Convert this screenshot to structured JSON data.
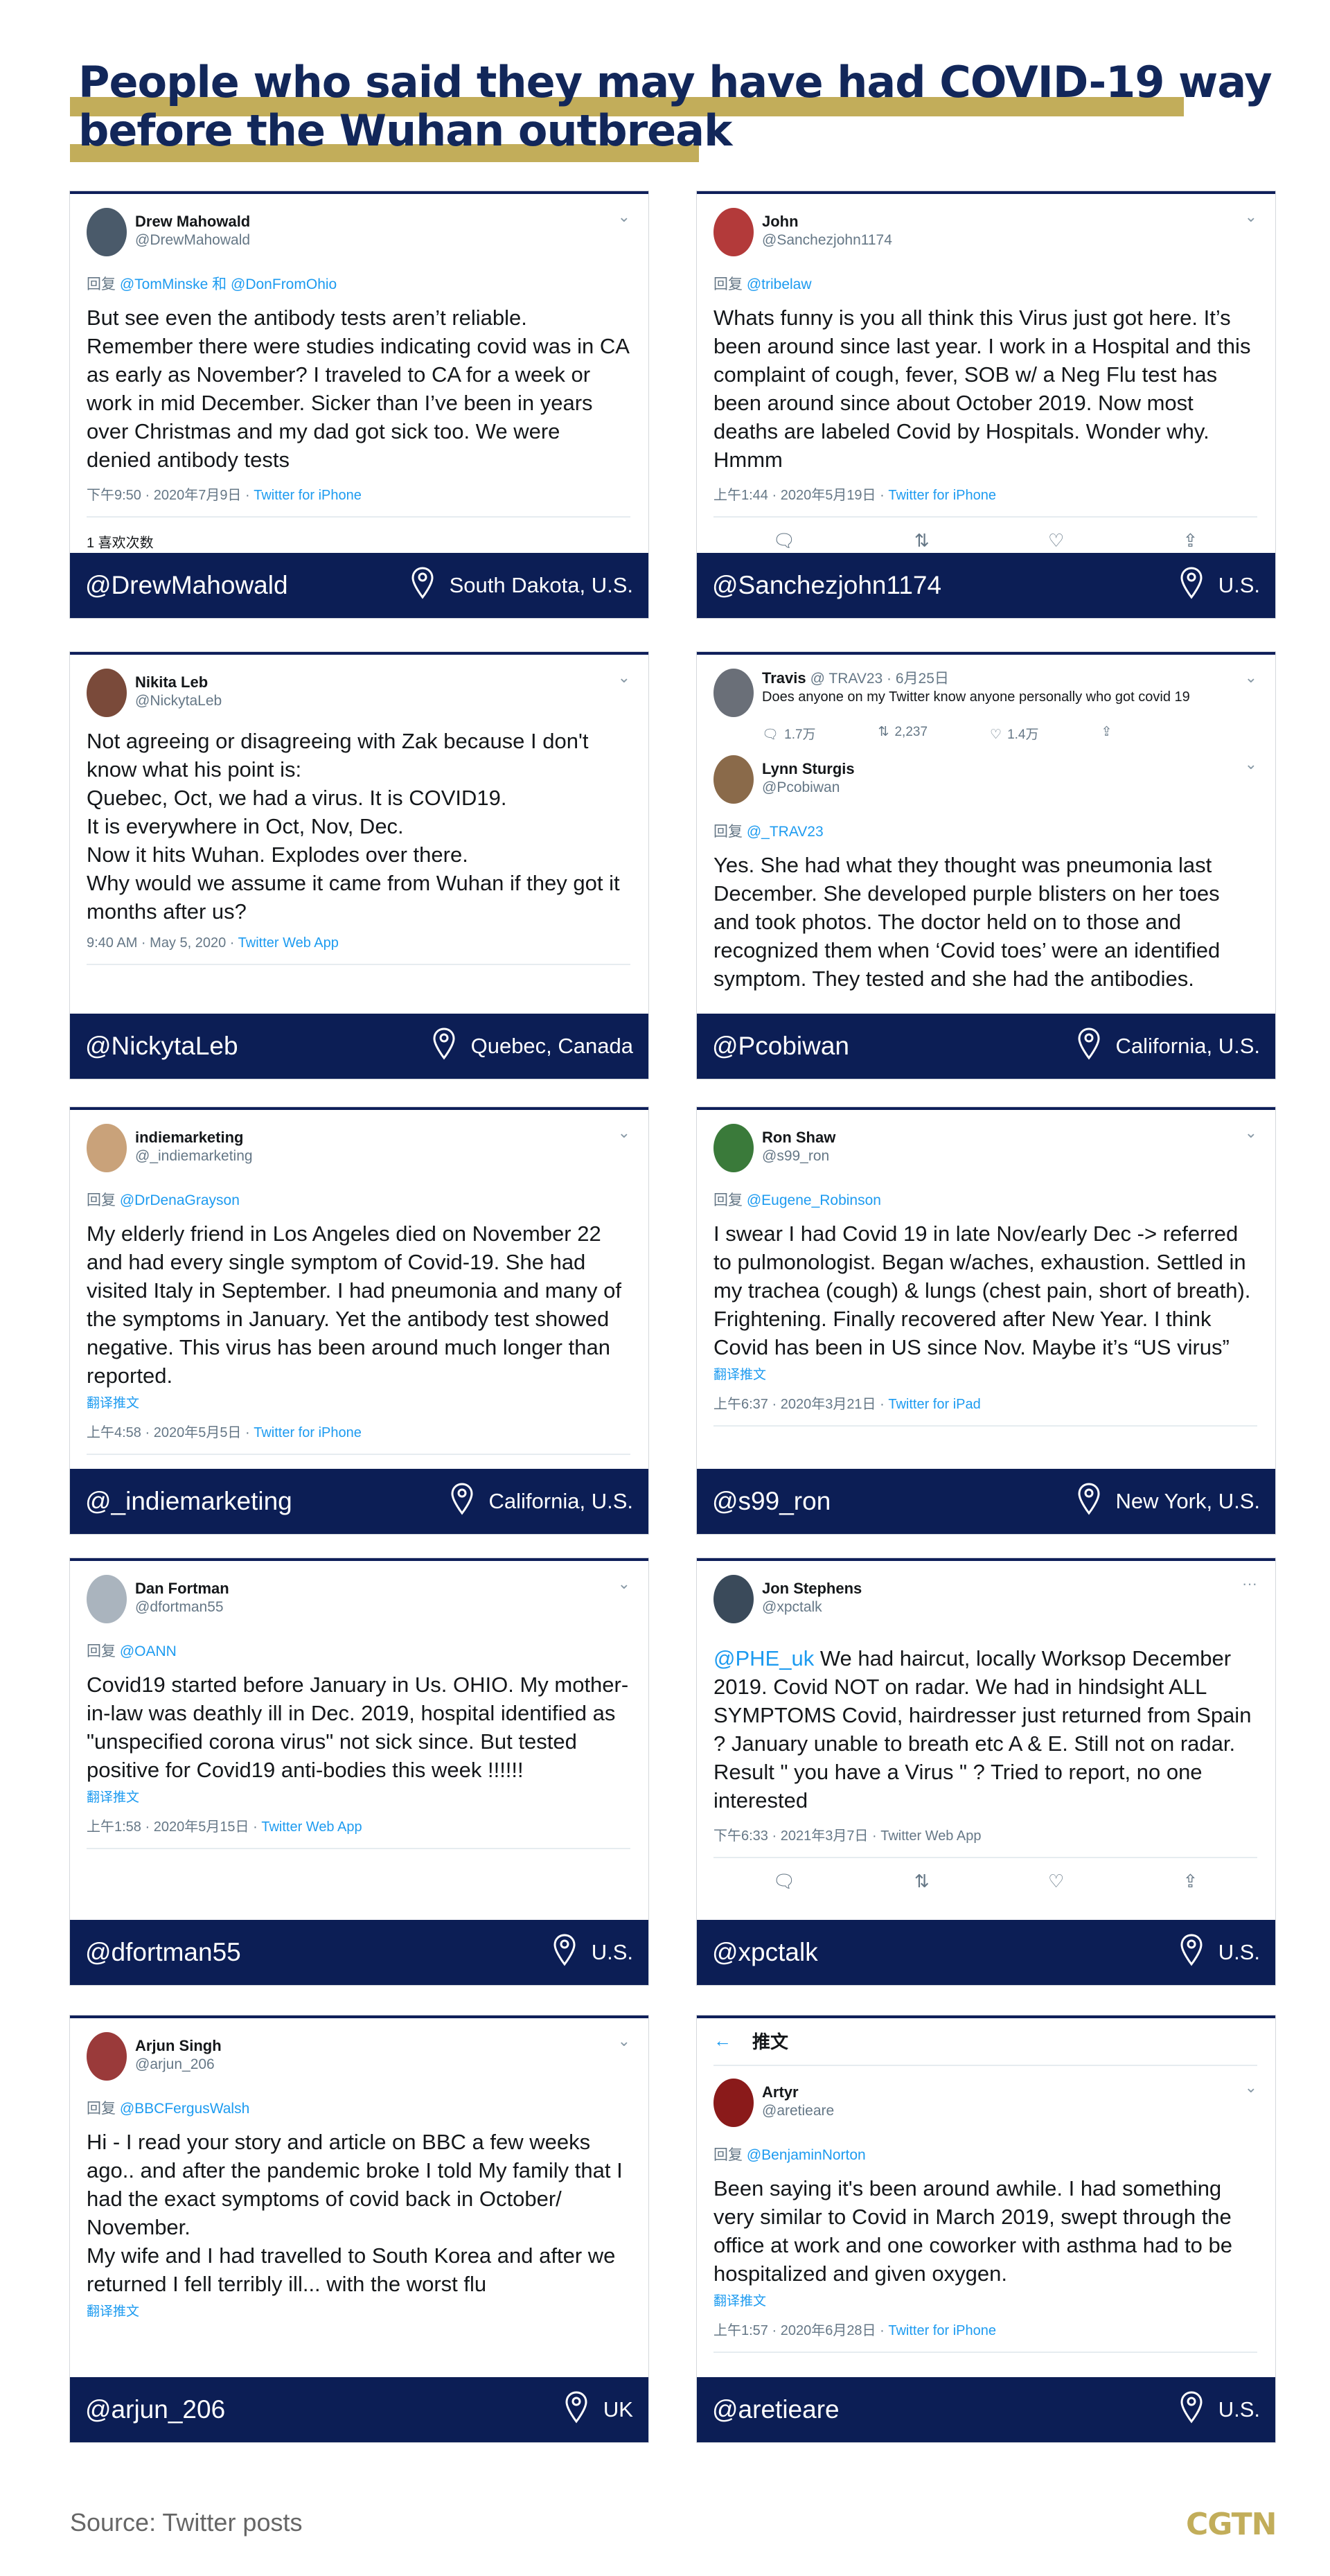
{
  "title": "People who said they may have had COVID-19 way\nbefore the Wuhan outbreak",
  "colors": {
    "title": "#12275a",
    "accent_bar": "#c2ad5a",
    "footer": "#0c1e55",
    "link": "#1d9bf0"
  },
  "cards": [
    {
      "name": "Drew Mahowald",
      "handle": "@DrewMahowald",
      "avatar_color": "#4a5a6a",
      "menu": "chevron",
      "reply_prefix": "回复",
      "reply_to": "@TomMinske 和 @DonFromOhio",
      "text": "But see even the antibody tests aren’t reliable. Remember there were studies indicating covid was in CA as early as November? I traveled to CA for a week or work in mid December. Sicker than I’ve been in years over Christmas and my dad got sick too. We were denied antibody tests",
      "time": "下午9:50 · 2020年7月9日 · ",
      "source": "Twitter for iPhone",
      "likes": "1 喜欢次数",
      "footer_handle": "@DrewMahowald",
      "location": "South Dakota, U.S."
    },
    {
      "name": "John",
      "handle": "@Sanchezjohn1174",
      "avatar_color": "#b33a3a",
      "menu": "chevron",
      "reply_prefix": "回复",
      "reply_to": "@tribelaw",
      "text": "Whats funny is you all think this Virus just got here. It’s been around since last year. I work in a Hospital and this complaint of cough, fever, SOB w/ a Neg Flu test has been around since about October 2019. Now most deaths are labeled Covid by Hospitals. Wonder why. Hmmm",
      "time": "上午1:44 · 2020年5月19日 · ",
      "source": "Twitter for iPhone",
      "actions": true,
      "footer_handle": "@Sanchezjohn1174",
      "location": "U.S."
    },
    {
      "name": "Nikita Leb",
      "handle": "@NickytaLeb",
      "avatar_color": "#7a4a3a",
      "menu": "chevron",
      "text": "Not agreeing or disagreeing with Zak because I don't know what his point is:\nQuebec, Oct, we had a virus.  It is COVID19.\nIt is everywhere in Oct, Nov, Dec.\nNow it hits Wuhan.  Explodes over there.\nWhy would we assume it came from Wuhan if they got it months after us?",
      "time": "9:40 AM · May 5, 2020 · ",
      "source": "Twitter Web App",
      "footer_handle": "@NickytaLeb",
      "location": "Quebec, Canada"
    },
    {
      "parent": {
        "name": "Travis",
        "meta": "@ TRAV23 · 6月25日",
        "text": "Does anyone on my Twitter know anyone personally who got covid 19",
        "replies": "1.7万",
        "retweets": "2,237",
        "likes": "1.4万",
        "avatar_color": "#6a6f78"
      },
      "name": "Lynn Sturgis",
      "handle": "@Pcobiwan",
      "avatar_color": "#8a6a4a",
      "menu": "chevron",
      "reply_prefix": "回复",
      "reply_to": "@_TRAV23",
      "text": "Yes.  She had what they thought was pneumonia last December.  She developed purple blisters on her toes and took photos.  The doctor held on to those and recognized them when ‘Covid toes’ were an identified symptom.  They tested and she had the antibodies.",
      "footer_handle": "@Pcobiwan",
      "location": "California, U.S."
    },
    {
      "name": "indiemarketing",
      "handle": "@_indiemarketing",
      "avatar_color": "#c9a27a",
      "menu": "chevron",
      "reply_prefix": "回复",
      "reply_to": "@DrDenaGrayson",
      "text": "My elderly friend in Los Angeles died on November 22 and had every single symptom of Covid-19. She had visited Italy in September.  I had pneumonia and many of the symptoms in January. Yet the antibody test showed negative. This virus has been around much longer than reported.",
      "translate": "翻译推文",
      "time": "上午4:58 · 2020年5月5日 · ",
      "source": "Twitter for iPhone",
      "footer_handle": "@_indiemarketing",
      "location": "California, U.S."
    },
    {
      "name": "Ron Shaw",
      "handle": "@s99_ron",
      "avatar_color": "#3a7a3a",
      "menu": "chevron",
      "reply_prefix": "回复",
      "reply_to": "@Eugene_Robinson",
      "text": "I swear I had Covid 19 in late Nov/early Dec -> referred to pulmonologist. Began w/aches, exhaustion. Settled in my trachea (cough) & lungs (chest pain, short of breath). Frightening. Finally recovered after New Year. I think Covid has been in US since Nov. Maybe  it’s “US virus”",
      "translate": "翻译推文",
      "time": "上午6:37 · 2020年3月21日 · ",
      "source": "Twitter for iPad",
      "footer_handle": "@s99_ron",
      "location": "New York, U.S."
    },
    {
      "name": "Dan Fortman",
      "handle": "@dfortman55",
      "avatar_color": "#aab4be",
      "menu": "chevron",
      "reply_prefix": "回复",
      "reply_to": "@OANN",
      "text": "Covid19 started before January in Us. OHIO. My mother-in-law was deathly ill in Dec. 2019, hospital identified as \"unspecified corona virus\" not sick since. But tested positive for Covid19 anti-bodies this week !!!!!!",
      "translate": "翻译推文",
      "time": "上午1:58 · 2020年5月15日 · ",
      "source": "Twitter Web App",
      "footer_handle": "@dfortman55",
      "location": "U.S."
    },
    {
      "name": "Jon Stephens",
      "handle": "@xpctalk",
      "avatar_color": "#3a4a5a",
      "menu": "more",
      "mention": "@PHE_uk",
      "text": " We had haircut, locally Worksop December 2019. Covid NOT on radar. We had in hindsight ALL SYMPTOMS Covid, hairdresser  just returned from Spain ?  January unable to breath etc A & E. Still not on radar. Result \" you have a Virus \" ? Tried to report, no one interested",
      "time": "下午6:33 · 2021年3月7日 · ",
      "source": "Twitter Web App",
      "source_plain": true,
      "actions": true,
      "footer_handle": "@xpctalk",
      "location": "U.S."
    },
    {
      "name": "Arjun Singh",
      "handle": "@arjun_206",
      "avatar_color": "#9a3a3a",
      "menu": "chevron",
      "reply_prefix": "回复",
      "reply_to": "@BBCFergusWalsh",
      "text": "Hi - I read your story and article on BBC a few weeks ago.. and after the pandemic broke I told My family that I had the exact symptoms of covid back in October/ November.\nMy wife and I had travelled to South Korea and after we returned I fell terribly ill... with the worst flu",
      "translate": "翻译推文",
      "footer_handle": "@arjun_206",
      "location": "UK"
    },
    {
      "topbar": "推文",
      "name": "Artyr",
      "handle": "@aretieare",
      "avatar_color": "#8a1a1a",
      "menu": "chevron",
      "reply_prefix": "回复",
      "reply_to": "@BenjaminNorton",
      "text": "Been saying it's been around awhile. I had something very similar to Covid in March 2019, swept through the office at work and one coworker with asthma had to be hospitalized and given oxygen.",
      "translate": "翻译推文",
      "time": "上午1:57 · 2020年6月28日 · ",
      "source": "Twitter for iPhone",
      "footer_handle": "@aretieare",
      "location": "U.S."
    }
  ],
  "source_note": "Source: Twitter posts",
  "logo": "CGTN"
}
